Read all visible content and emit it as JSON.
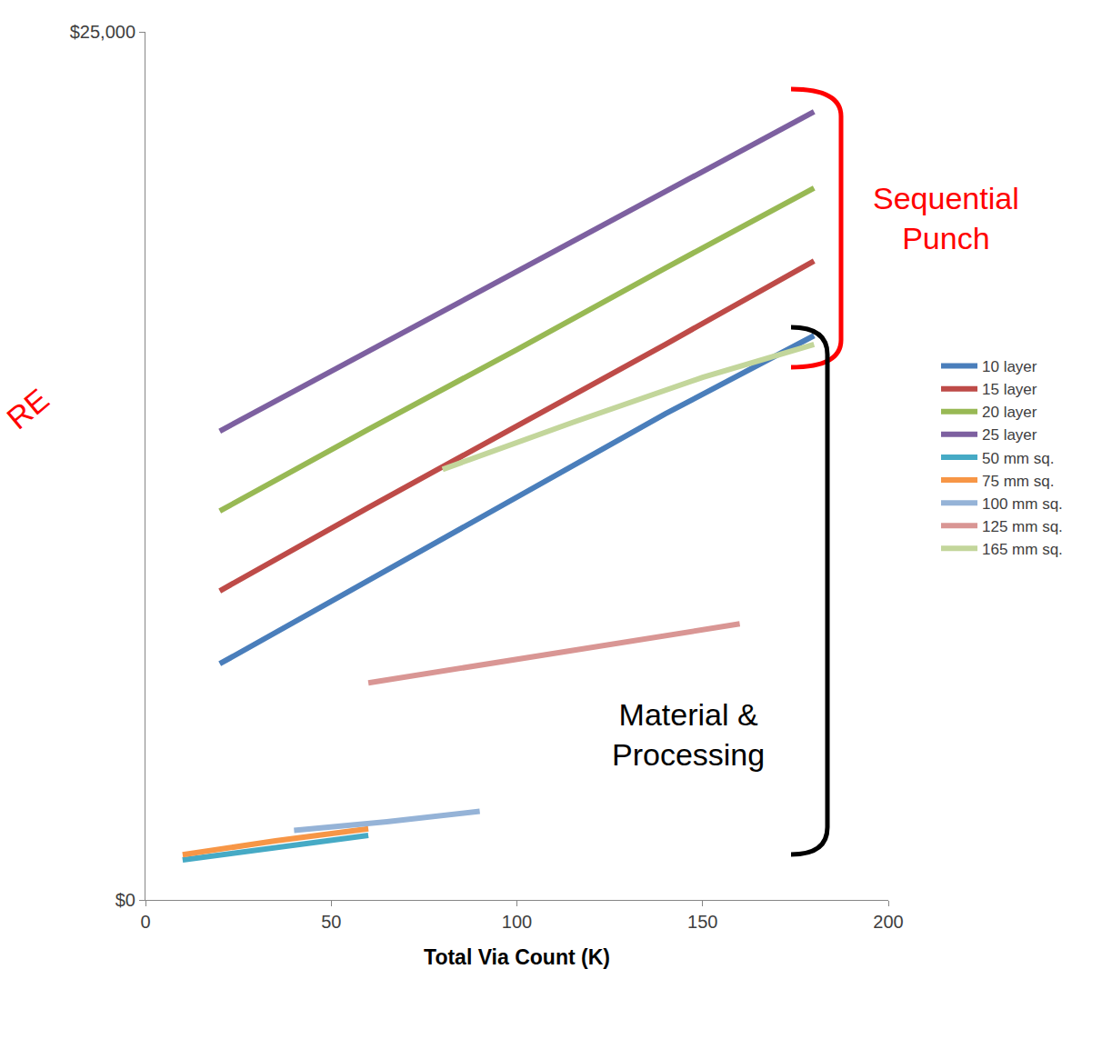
{
  "chart_data": {
    "type": "line",
    "x_label": "Total Via Count (K)",
    "xlim": [
      0,
      200
    ],
    "xticks": [
      0,
      50,
      100,
      150,
      200
    ],
    "ylim": [
      0,
      25000
    ],
    "yticks": [
      {
        "value": 0,
        "label": "$0"
      },
      {
        "value": 25000,
        "label": "$25,000"
      }
    ],
    "grid": true,
    "legend": "right",
    "annotations": [
      {
        "text": "Sequential Punch",
        "color": "#ff0000"
      },
      {
        "text": "Material & Processing",
        "color": "#000000"
      },
      {
        "text": "RE",
        "color": "#ff0000"
      }
    ],
    "series": [
      {
        "name": "10 layer",
        "color": "#4a7ebb",
        "x": [
          20,
          60,
          100,
          140,
          180
        ],
        "values": [
          6800,
          9200,
          11600,
          14000,
          16250
        ]
      },
      {
        "name": "15 layer",
        "color": "#be4b48",
        "x": [
          20,
          60,
          100,
          140,
          180
        ],
        "values": [
          8900,
          11300,
          13650,
          16000,
          18400
        ]
      },
      {
        "name": "20 layer",
        "color": "#98b954",
        "x": [
          20,
          60,
          100,
          140,
          180
        ],
        "values": [
          11200,
          13550,
          15850,
          18200,
          20500
        ]
      },
      {
        "name": "25 layer",
        "color": "#7d60a0",
        "x": [
          20,
          60,
          100,
          140,
          180
        ],
        "values": [
          13500,
          15800,
          18100,
          20400,
          22700
        ]
      },
      {
        "name": "50 mm sq.",
        "color": "#46aac5",
        "x": [
          10,
          35,
          60
        ],
        "values": [
          1150,
          1500,
          1860
        ]
      },
      {
        "name": "75 mm sq.",
        "color": "#f79646",
        "x": [
          10,
          35,
          60
        ],
        "values": [
          1300,
          1700,
          2050
        ]
      },
      {
        "name": "100 mm sq.",
        "color": "#95b3d7",
        "x": [
          40,
          65,
          90
        ],
        "values": [
          2000,
          2250,
          2550
        ]
      },
      {
        "name": "125 mm sq.",
        "color": "#d99694",
        "x": [
          60,
          110,
          160
        ],
        "values": [
          6250,
          7100,
          7950
        ]
      },
      {
        "name": "165 mm sq.",
        "color": "#c3d69b",
        "x": [
          80,
          115,
          150,
          180
        ],
        "values": [
          12400,
          13750,
          15050,
          16000
        ]
      }
    ]
  }
}
